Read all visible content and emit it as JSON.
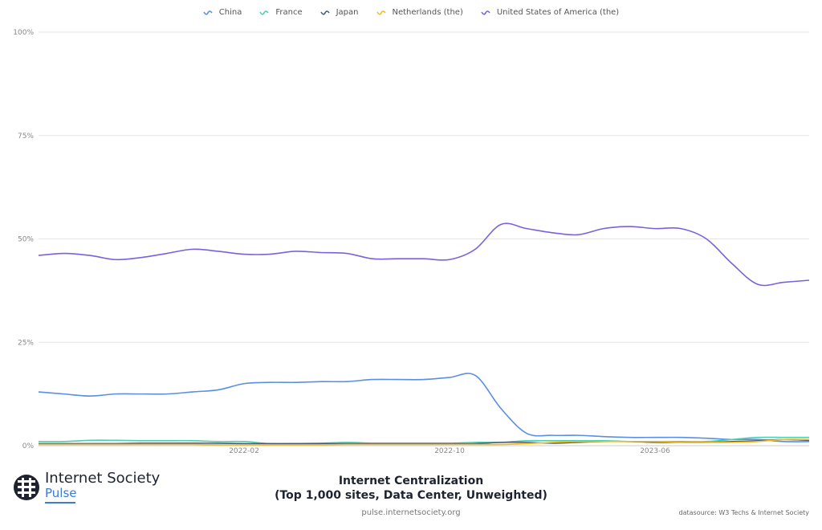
{
  "chart_data": {
    "type": "line",
    "title": "Internet Centralization",
    "subtitle": "(Top 1,000 sites, Data Center, Unweighted)",
    "x": [
      "2021-06",
      "2021-07",
      "2021-08",
      "2021-09",
      "2021-10",
      "2021-11",
      "2021-12",
      "2022-01",
      "2022-02",
      "2022-03",
      "2022-04",
      "2022-05",
      "2022-06",
      "2022-07",
      "2022-08",
      "2022-09",
      "2022-10",
      "2022-11",
      "2022-12",
      "2023-01",
      "2023-02",
      "2023-03",
      "2023-04",
      "2023-05",
      "2023-06",
      "2023-07",
      "2023-08",
      "2023-09",
      "2023-10",
      "2023-11",
      "2023-12"
    ],
    "x_tick_labels": [
      "2022-02",
      "2022-10",
      "2023-06"
    ],
    "y_tick_labels": [
      "0%",
      "25%",
      "50%",
      "75%",
      "100%"
    ],
    "ylim": [
      0,
      100
    ],
    "grid": true,
    "legend_position": "top-center",
    "series": [
      {
        "name": "China",
        "color": "#5b8ee6",
        "values": [
          13,
          12.5,
          12,
          12.5,
          12.5,
          12.5,
          13,
          13.5,
          15,
          15.3,
          15.3,
          15.5,
          15.5,
          16,
          16,
          16,
          16.5,
          17,
          9,
          3,
          2.5,
          2.5,
          2.2,
          2,
          2,
          2,
          1.8,
          1.5,
          1.5,
          1,
          1
        ]
      },
      {
        "name": "France",
        "color": "#4ccfb0",
        "values": [
          1,
          1,
          1.3,
          1.3,
          1.2,
          1.2,
          1.2,
          1,
          1,
          0.5,
          0.5,
          0.6,
          0.8,
          0.6,
          0.6,
          0.6,
          0.6,
          0.8,
          0.8,
          1.2,
          1.2,
          1.2,
          1.2,
          1,
          1,
          1,
          1,
          1.5,
          2,
          2,
          2
        ]
      },
      {
        "name": "Japan",
        "color": "#4a5a7a",
        "values": [
          0.5,
          0.5,
          0.5,
          0.5,
          0.6,
          0.6,
          0.6,
          0.6,
          0.5,
          0.5,
          0.5,
          0.5,
          0.5,
          0.5,
          0.5,
          0.5,
          0.5,
          0.5,
          0.8,
          0.8,
          0.6,
          0.8,
          1,
          1,
          0.8,
          0.8,
          0.8,
          1,
          1.2,
          1.5,
          1.3
        ]
      },
      {
        "name": "Netherlands (the)",
        "color": "#f3bd1c",
        "values": [
          0.3,
          0.3,
          0.3,
          0.3,
          0.3,
          0.3,
          0.3,
          0.2,
          0.2,
          0.2,
          0.2,
          0.2,
          0.3,
          0.3,
          0.3,
          0.3,
          0.3,
          0.3,
          0.3,
          0.5,
          0.8,
          1,
          1,
          1,
          1,
          0.8,
          0.8,
          0.8,
          1,
          1.5,
          1.5
        ]
      },
      {
        "name": "United States of America (the)",
        "color": "#7b61de",
        "values": [
          46,
          46.5,
          46,
          45,
          45.5,
          46.5,
          47.5,
          47,
          46.3,
          46.3,
          47,
          46.7,
          46.5,
          45.2,
          45.2,
          45.2,
          45,
          47.5,
          53.5,
          52.5,
          51.5,
          51,
          52.5,
          53,
          52.5,
          52.5,
          50,
          44,
          39,
          39.5,
          40
        ]
      }
    ]
  },
  "branding": {
    "logo_name": "Internet Society",
    "logo_sub": "Pulse",
    "site": "pulse.internetsociety.org",
    "datasource": "datasource: W3 Techs & Internet Society"
  }
}
